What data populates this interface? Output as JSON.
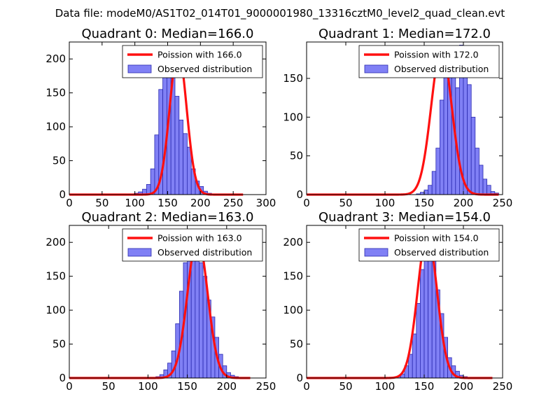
{
  "figure": {
    "suptitle": "Data file: modeM0/AS1T02_014T01_9000001980_13316cztM0_level2_quad_clean.evt"
  },
  "chart_data": [
    {
      "type": "bar",
      "title": "Quadrant 0: Median=166.0",
      "median": 166.0,
      "xlim": [
        0,
        300
      ],
      "ylim": [
        0,
        225
      ],
      "xticks": [
        "0",
        "50",
        "100",
        "150",
        "200",
        "250",
        "300"
      ],
      "yticks": [
        "0",
        "50",
        "100",
        "150",
        "200"
      ],
      "legend": {
        "location": "top-right",
        "entries": [
          "Poission with 166.0",
          "Observed distribution"
        ]
      },
      "histogram": {
        "bin_edges": [
          0,
          6.2
        ],
        "bin_width": 6.2,
        "values": [
          0,
          0,
          0,
          0,
          0,
          0,
          0,
          0,
          0,
          0,
          0,
          0,
          0,
          0,
          0,
          0,
          2,
          4,
          8,
          15,
          38,
          88,
          155,
          200,
          215,
          200,
          145,
          110,
          90,
          70,
          38,
          20,
          12,
          5,
          2,
          1,
          0,
          0,
          0,
          0,
          0,
          0,
          0,
          0,
          0,
          0,
          0,
          0
        ]
      },
      "poisson": {
        "mean": 166.0,
        "peak": 212,
        "x_range": [
          0,
          265
        ]
      }
    },
    {
      "type": "bar",
      "title": "Quadrant 1: Median=172.0",
      "median": 172.0,
      "xlim": [
        0,
        250
      ],
      "ylim": [
        0,
        197
      ],
      "xticks": [
        "0",
        "50",
        "100",
        "150",
        "200",
        "250"
      ],
      "yticks": [
        "0",
        "50",
        "100",
        "150"
      ],
      "legend": {
        "location": "top-right",
        "entries": [
          "Poission with 172.0",
          "Observed distribution"
        ]
      },
      "histogram": {
        "bin_width": 5.0,
        "values": [
          0,
          0,
          0,
          0,
          0,
          0,
          0,
          0,
          0,
          0,
          0,
          0,
          0,
          0,
          0,
          0,
          0,
          0,
          0,
          0,
          0,
          0,
          0,
          0,
          0,
          0,
          0,
          0,
          1,
          3,
          6,
          12,
          30,
          60,
          122,
          175,
          188,
          158,
          138,
          193,
          178,
          142,
          100,
          60,
          38,
          20,
          12,
          4,
          2,
          0,
          0,
          0,
          0,
          0,
          0,
          0,
          0,
          0,
          0,
          0
        ]
      },
      "poisson": {
        "mean": 172.0,
        "peak": 188,
        "x_range": [
          0,
          245
        ]
      }
    },
    {
      "type": "bar",
      "title": "Quadrant 2: Median=163.0",
      "median": 163.0,
      "xlim": [
        0,
        250
      ],
      "ylim": [
        0,
        225
      ],
      "xticks": [
        "0",
        "50",
        "100",
        "150",
        "200",
        "250"
      ],
      "yticks": [
        "0",
        "50",
        "100",
        "150",
        "200"
      ],
      "legend": {
        "location": "top-right",
        "entries": [
          "Poission with 163.0",
          "Observed distribution"
        ]
      },
      "histogram": {
        "bin_width": 5.0,
        "values": [
          0,
          0,
          0,
          0,
          0,
          0,
          0,
          0,
          0,
          0,
          0,
          0,
          0,
          0,
          0,
          0,
          0,
          0,
          0,
          0,
          0,
          0,
          2,
          5,
          12,
          22,
          40,
          80,
          128,
          170,
          205,
          205,
          190,
          170,
          150,
          115,
          90,
          60,
          35,
          18,
          8,
          4,
          2,
          1,
          0,
          0,
          0,
          0,
          0,
          0
        ]
      },
      "poisson": {
        "mean": 163.0,
        "peak": 207,
        "x_range": [
          0,
          230
        ]
      }
    },
    {
      "type": "bar",
      "title": "Quadrant 3: Median=154.0",
      "median": 154.0,
      "xlim": [
        0,
        250
      ],
      "ylim": [
        0,
        225
      ],
      "xticks": [
        "0",
        "50",
        "100",
        "150",
        "200",
        "250"
      ],
      "yticks": [
        "0",
        "50",
        "100",
        "150",
        "200"
      ],
      "legend": {
        "location": "top-right",
        "entries": [
          "Poission with 154.0",
          "Observed distribution"
        ]
      },
      "histogram": {
        "bin_width": 5.0,
        "values": [
          0,
          0,
          0,
          0,
          0,
          0,
          0,
          0,
          0,
          0,
          0,
          0,
          0,
          0,
          0,
          0,
          0,
          0,
          0,
          0,
          0,
          0,
          0,
          2,
          6,
          18,
          35,
          65,
          110,
          160,
          200,
          200,
          175,
          130,
          95,
          60,
          30,
          18,
          10,
          4,
          2,
          1,
          0,
          0,
          0,
          0,
          0,
          0,
          0,
          0
        ]
      },
      "poisson": {
        "mean": 154.0,
        "peak": 212,
        "x_range": [
          0,
          237
        ]
      }
    }
  ],
  "colors": {
    "bar_fill": "#8080f5",
    "bar_edge": "#2b2bb0",
    "poisson_line": "#ff1010",
    "axis": "#000000"
  }
}
